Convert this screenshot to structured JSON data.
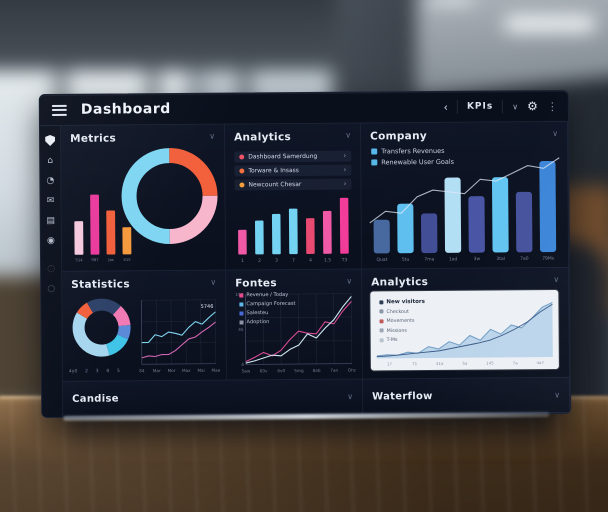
{
  "theme": {
    "screen_bg": "#0a0f1c",
    "panel_bg": "#0d1526",
    "cyan": "#7fd6f2",
    "pink": "#ef59a6",
    "magenta": "#ea3a9c",
    "orange": "#f5993d",
    "red_orange": "#f25f3c",
    "blue_light": "#63c5f1",
    "blue_dark": "#46549e",
    "blue_bright": "#3d86d8"
  },
  "header": {
    "title": "Dashboard",
    "nav_back": "‹",
    "kpi_label": "KPIs",
    "caret": "∨",
    "gear": "⚙",
    "more": "⋮"
  },
  "sidebar": {
    "icons": [
      {
        "name": "shield"
      },
      {
        "name": "home",
        "glyph": "⌂"
      },
      {
        "name": "pie",
        "glyph": "◔"
      },
      {
        "name": "mail",
        "glyph": "✉"
      },
      {
        "name": "grid",
        "glyph": "▤"
      },
      {
        "name": "target",
        "glyph": "◉"
      },
      {
        "name": "dotted-circle",
        "glyph": "◌"
      },
      {
        "name": "circle",
        "glyph": "○"
      }
    ]
  },
  "panels": {
    "metrics": {
      "title": "Metrics",
      "collapse": "∨",
      "donut": {
        "thickness": 15,
        "start": -90,
        "segments": [
          {
            "label": "segment-a",
            "color": "#f2603c",
            "value": 25
          },
          {
            "label": "segment-b",
            "color": "#f8b6cc",
            "value": 25
          },
          {
            "label": "segment-c",
            "color": "#7fd6f2",
            "value": 50
          }
        ]
      },
      "mini_bars": {
        "values": [
          42,
          75,
          55,
          34
        ],
        "colors": [
          "#f6c9dd",
          "#ea3a9c",
          "#f25f3c",
          "#f5993d"
        ],
        "labels": [
          "514",
          "987",
          "Jas",
          "415"
        ]
      }
    },
    "analytics": {
      "title": "Analytics",
      "collapse": "∨",
      "items": [
        {
          "dot": "#ef5468",
          "label": "Dashboard Samerdung",
          "chevron": "›"
        },
        {
          "dot": "#f2703c",
          "label": "Torware & Insass",
          "chevron": "›"
        },
        {
          "dot": "#f5a03c",
          "label": "Newcount Chesar",
          "chevron": "›"
        }
      ],
      "bars": {
        "values": [
          38,
          52,
          62,
          70,
          55,
          66,
          86
        ],
        "colors": [
          "#ef59a6",
          "#74d2f2",
          "#74d2f2",
          "#74d2f2",
          "#e84a72",
          "#ef59a6",
          "#f23c9a"
        ],
        "labels": [
          "1",
          "2",
          "3",
          "7",
          "4",
          "1.5",
          "T3"
        ]
      }
    },
    "company": {
      "title": "Company",
      "collapse": "∨",
      "legend": [
        {
          "color": "#57b8e8",
          "label": "Transfers Revenues"
        },
        {
          "color": "#57b8e8",
          "label": "Renewable User Goals"
        }
      ],
      "bars": {
        "values": [
          34,
          50,
          40,
          76,
          57,
          76,
          61,
          92
        ],
        "colors": [
          "#47699f",
          "#5fc0ef",
          "#424f97",
          "#b3dff5",
          "#4a56a5",
          "#63c5f1",
          "#47539d",
          "#3d86d8"
        ],
        "labels": [
          "Quat",
          "5tu",
          "7ma",
          "1ad",
          "3w",
          "3tal",
          "7a0",
          "79Ms"
        ]
      },
      "trend_line": [
        28,
        40,
        38,
        55,
        62,
        60,
        58,
        73,
        71,
        79,
        87,
        84,
        95
      ]
    },
    "statistics": {
      "title": "Statistics",
      "collapse": "∨",
      "donut": {
        "thickness": 12,
        "start": -120,
        "segments": [
          {
            "label": "seg-1",
            "color": "#2e4168",
            "value": 20
          },
          {
            "label": "seg-2",
            "color": "#f07ab4",
            "value": 12
          },
          {
            "label": "seg-3",
            "color": "#5a8ad8",
            "value": 8
          },
          {
            "label": "seg-4",
            "color": "#40c4e8",
            "value": 14
          },
          {
            "label": "seg-5",
            "color": "#a6d6ee",
            "value": 38
          },
          {
            "label": "seg-6",
            "color": "#f2603c",
            "value": 8
          }
        ],
        "labels": [
          "4y0",
          "2",
          "3",
          "8",
          "5"
        ]
      },
      "line_chart": {
        "annotation": "5746",
        "x_labels": [
          "84",
          "Mar",
          "Mor",
          "Max",
          "Mai",
          "Mae"
        ],
        "series": [
          {
            "name": "series-cyan",
            "color": "#7fd4f0",
            "values": [
              34,
              34,
              46,
              43,
              50,
              48,
              45,
              57,
              66,
              62,
              72,
              81
            ]
          },
          {
            "name": "series-magenta",
            "color": "#d465b4",
            "values": [
              10,
              13,
              12,
              15,
              15,
              21,
              30,
              39,
              42,
              50,
              57,
              65
            ]
          }
        ]
      }
    },
    "fontes": {
      "title": "Fontes",
      "collapse": "∨",
      "legend": [
        {
          "color": "#e84a8e",
          "label": "Revenue / Today"
        },
        {
          "color": "#62b8e8",
          "label": "Campaign Forecast"
        },
        {
          "color": "#4a6ad8",
          "label": "Salesteu"
        },
        {
          "color": "#8a93a8",
          "label": "Adoption"
        }
      ],
      "y_labels": [
        "150",
        "45",
        "4"
      ],
      "x_labels": [
        "5aw",
        "60v",
        "6v0",
        "5mg",
        "8ab",
        "7an",
        "Ohc"
      ],
      "series": [
        {
          "name": "series-magenta",
          "color": "#d84a94",
          "values": [
            4,
            10,
            17,
            12,
            20,
            35,
            47,
            44,
            43,
            60,
            57,
            75,
            89
          ]
        },
        {
          "name": "series-light",
          "color": "#cfe8f2",
          "values": [
            2,
            5,
            9,
            13,
            12,
            21,
            27,
            43,
            37,
            51,
            63,
            81,
            96
          ]
        }
      ]
    },
    "analytics2": {
      "title": "Analytics",
      "collapse": "∨",
      "card_legend": [
        {
          "marker": "#2d3e55",
          "label": "New visitors",
          "bold": true
        },
        {
          "marker": "#8a95a5",
          "label": "Checkout"
        },
        {
          "marker": "#c05a5a",
          "label": "Movements"
        },
        {
          "marker": "#9aa5b5",
          "label": "Missions"
        },
        {
          "marker": "#b8c2cc",
          "label": "T-Ms"
        }
      ],
      "x_labels": [
        "17",
        "71",
        "41a",
        "5a",
        "145",
        "7a",
        "4a7"
      ],
      "area": {
        "fill": "#b9d3ea",
        "stroke": "#6f9cc4",
        "values": [
          4,
          6,
          5,
          10,
          8,
          19,
          15,
          27,
          21,
          37,
          29,
          47,
          39,
          54,
          49,
          65,
          83,
          91
        ]
      },
      "line": {
        "color": "#3a5a86",
        "values": [
          3,
          4,
          6,
          8,
          10,
          12,
          16,
          20,
          24,
          29,
          37,
          47,
          59,
          75,
          88
        ]
      }
    },
    "candise": {
      "title": "Candise",
      "collapse": "∨"
    },
    "waterflow": {
      "title": "Waterflow",
      "collapse": "∨"
    }
  }
}
